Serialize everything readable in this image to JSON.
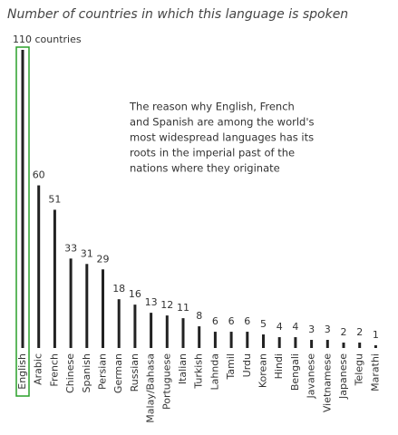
{
  "chart_data": {
    "type": "bar",
    "title": "Number of countries in which this language is spoken",
    "annotation": [
      "The reason why English, French",
      "and Spanish are among the world's",
      "most widespread languages has its",
      "roots in the imperial past of the",
      "nations where they originate"
    ],
    "categories": [
      "English",
      "Arabic",
      "French",
      "Chinese",
      "Spanish",
      "Persian",
      "German",
      "Russian",
      "Malay/Bahasa",
      "Portuguese",
      "Italian",
      "Turkish",
      "Lahnda",
      "Tamil",
      "Urdu",
      "Korean",
      "Hindi",
      "Bengali",
      "Javanese",
      "Vietnamese",
      "Japanese",
      "Telegu",
      "Marathi"
    ],
    "values": [
      110,
      60,
      51,
      33,
      31,
      29,
      18,
      16,
      13,
      12,
      11,
      8,
      6,
      6,
      6,
      5,
      4,
      4,
      3,
      3,
      2,
      2,
      1
    ],
    "value_labels": [
      "110 countries",
      "60",
      "51",
      "33",
      "31",
      "29",
      "18",
      "16",
      "13",
      "12",
      "11",
      "8",
      "6",
      "6",
      "6",
      "5",
      "4",
      "4",
      "3",
      "3",
      "2",
      "2",
      "1"
    ],
    "color": "#222222"
  }
}
